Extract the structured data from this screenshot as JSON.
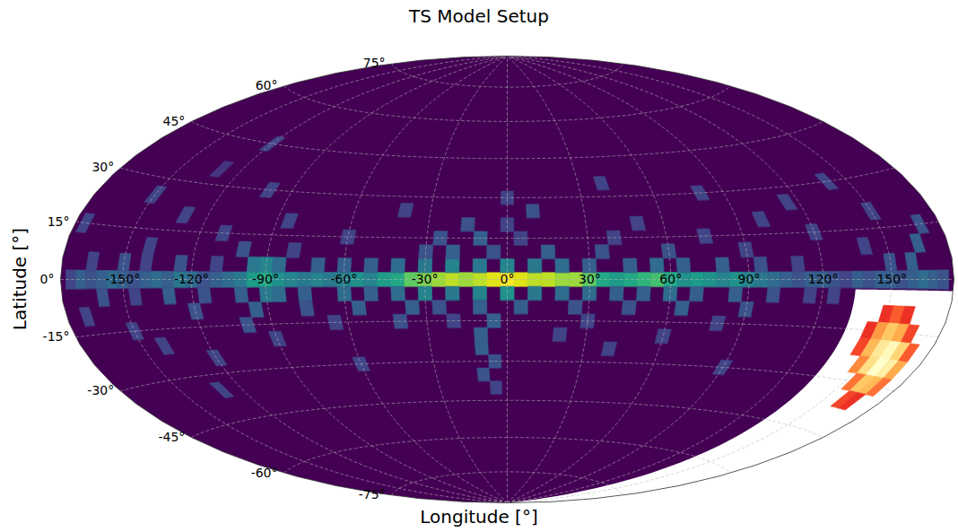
{
  "chart_data": {
    "type": "skymap",
    "title": "TS Model Setup",
    "x_label": "Longitude [°]",
    "y_label": "Latitude [°]",
    "xlim": [
      -180,
      180
    ],
    "ylim": [
      -90,
      90
    ],
    "xticks": [
      {
        "value": -150,
        "label": "-150°"
      },
      {
        "value": -120,
        "label": "-120°"
      },
      {
        "value": -90,
        "label": "-90°"
      },
      {
        "value": -60,
        "label": "-60°"
      },
      {
        "value": -30,
        "label": "-30°"
      },
      {
        "value": 0,
        "label": "0°"
      },
      {
        "value": 30,
        "label": "30°"
      },
      {
        "value": 60,
        "label": "60°"
      },
      {
        "value": 90,
        "label": "90°"
      },
      {
        "value": 120,
        "label": "120°"
      },
      {
        "value": 150,
        "label": "150°"
      }
    ],
    "yticks": [
      {
        "value": -75,
        "label": "-75°"
      },
      {
        "value": -60,
        "label": "-60°"
      },
      {
        "value": -45,
        "label": "-45°"
      },
      {
        "value": -30,
        "label": "-30°"
      },
      {
        "value": -15,
        "label": "-15°"
      },
      {
        "value": 0,
        "label": "0°"
      },
      {
        "value": 15,
        "label": "15°"
      },
      {
        "value": 30,
        "label": "30°"
      },
      {
        "value": 45,
        "label": "45°"
      },
      {
        "value": 60,
        "label": "60°"
      },
      {
        "value": 75,
        "label": "75°"
      }
    ],
    "grid": true,
    "heatmap": {
      "cell_size": 5,
      "zlim": [
        0,
        1
      ],
      "cells": [
        [
          -175,
          0,
          0.2
        ],
        [
          -170,
          0,
          0.3
        ],
        [
          -165,
          0,
          0.25
        ],
        [
          -160,
          0,
          0.3
        ],
        [
          -155,
          0,
          0.35
        ],
        [
          -150,
          0,
          0.3
        ],
        [
          -145,
          0,
          0.25
        ],
        [
          -140,
          0,
          0.3
        ],
        [
          -135,
          0,
          0.35
        ],
        [
          -130,
          0,
          0.3
        ],
        [
          -125,
          0,
          0.4
        ],
        [
          -120,
          0,
          0.35
        ],
        [
          -115,
          0,
          0.25
        ],
        [
          -110,
          0,
          0.3
        ],
        [
          -105,
          0,
          0.35
        ],
        [
          -100,
          0,
          0.4
        ],
        [
          -95,
          0,
          0.55
        ],
        [
          -90,
          0,
          0.6
        ],
        [
          -85,
          0,
          0.5
        ],
        [
          -80,
          0,
          0.45
        ],
        [
          -75,
          0,
          0.4
        ],
        [
          -70,
          0,
          0.45
        ],
        [
          -65,
          0,
          0.4
        ],
        [
          -60,
          0,
          0.45
        ],
        [
          -55,
          0,
          0.5
        ],
        [
          -50,
          0,
          0.45
        ],
        [
          -45,
          0,
          0.55
        ],
        [
          -40,
          0,
          0.6
        ],
        [
          -35,
          0,
          0.75
        ],
        [
          -30,
          0,
          0.8
        ],
        [
          -25,
          0,
          0.85
        ],
        [
          -20,
          0,
          0.9
        ],
        [
          -15,
          0,
          0.85
        ],
        [
          -10,
          0,
          0.9
        ],
        [
          -5,
          0,
          0.95
        ],
        [
          0,
          0,
          1.0
        ],
        [
          5,
          0,
          0.95
        ],
        [
          10,
          0,
          0.9
        ],
        [
          15,
          0,
          0.9
        ],
        [
          20,
          0,
          0.85
        ],
        [
          25,
          0,
          0.85
        ],
        [
          30,
          0,
          0.75
        ],
        [
          35,
          0,
          0.6
        ],
        [
          40,
          0,
          0.55
        ],
        [
          45,
          0,
          0.6
        ],
        [
          50,
          0,
          0.65
        ],
        [
          55,
          0,
          0.7
        ],
        [
          60,
          0,
          0.6
        ],
        [
          65,
          0,
          0.5
        ],
        [
          70,
          0,
          0.55
        ],
        [
          75,
          0,
          0.5
        ],
        [
          80,
          0,
          0.45
        ],
        [
          85,
          0,
          0.5
        ],
        [
          90,
          0,
          0.45
        ],
        [
          95,
          0,
          0.4
        ],
        [
          100,
          0,
          0.35
        ],
        [
          105,
          0,
          0.3
        ],
        [
          110,
          0,
          0.25
        ],
        [
          115,
          0,
          0.3
        ],
        [
          120,
          0,
          0.3
        ],
        [
          125,
          0,
          0.25
        ],
        [
          130,
          0,
          0.2
        ],
        [
          135,
          0,
          0.3
        ],
        [
          140,
          0,
          0.25
        ],
        [
          145,
          0,
          0.3
        ],
        [
          150,
          0,
          0.3
        ],
        [
          155,
          0,
          0.25
        ],
        [
          160,
          0,
          0.3
        ],
        [
          165,
          0,
          0.35
        ],
        [
          170,
          0,
          0.3
        ],
        [
          175,
          0,
          0.25
        ],
        [
          -165,
          5,
          0.2
        ],
        [
          -150,
          5,
          0.25
        ],
        [
          -140,
          5,
          0.2
        ],
        [
          -125,
          5,
          0.25
        ],
        [
          -110,
          5,
          0.2
        ],
        [
          -95,
          5,
          0.4
        ],
        [
          -90,
          5,
          0.45
        ],
        [
          -85,
          5,
          0.35
        ],
        [
          -70,
          5,
          0.3
        ],
        [
          -60,
          5,
          0.3
        ],
        [
          -50,
          5,
          0.3
        ],
        [
          -40,
          5,
          0.35
        ],
        [
          -30,
          5,
          0.4
        ],
        [
          -20,
          5,
          0.45
        ],
        [
          -10,
          5,
          0.4
        ],
        [
          0,
          5,
          0.45
        ],
        [
          10,
          5,
          0.4
        ],
        [
          20,
          5,
          0.35
        ],
        [
          30,
          5,
          0.3
        ],
        [
          45,
          5,
          0.3
        ],
        [
          55,
          5,
          0.35
        ],
        [
          65,
          5,
          0.3
        ],
        [
          80,
          5,
          0.3
        ],
        [
          95,
          5,
          0.25
        ],
        [
          110,
          5,
          0.2
        ],
        [
          150,
          5,
          0.25
        ],
        [
          160,
          5,
          0.3
        ],
        [
          -160,
          -5,
          0.25
        ],
        [
          -145,
          -5,
          0.2
        ],
        [
          -130,
          -5,
          0.3
        ],
        [
          -115,
          -5,
          0.25
        ],
        [
          -100,
          -5,
          0.3
        ],
        [
          -90,
          -5,
          0.4
        ],
        [
          -85,
          -5,
          0.35
        ],
        [
          -75,
          -5,
          0.3
        ],
        [
          -60,
          -5,
          0.35
        ],
        [
          -50,
          -5,
          0.3
        ],
        [
          -40,
          -5,
          0.35
        ],
        [
          -30,
          -5,
          0.45
        ],
        [
          -20,
          -5,
          0.4
        ],
        [
          -10,
          -5,
          0.45
        ],
        [
          0,
          -5,
          0.5
        ],
        [
          10,
          -5,
          0.4
        ],
        [
          20,
          -5,
          0.35
        ],
        [
          30,
          -5,
          0.35
        ],
        [
          40,
          -5,
          0.3
        ],
        [
          50,
          -5,
          0.3
        ],
        [
          60,
          -5,
          0.35
        ],
        [
          70,
          -5,
          0.3
        ],
        [
          85,
          -5,
          0.3
        ],
        [
          100,
          -5,
          0.25
        ],
        [
          115,
          -5,
          0.2
        ],
        [
          125,
          -5,
          0.2
        ],
        [
          -140,
          10,
          0.2
        ],
        [
          -100,
          10,
          0.25
        ],
        [
          -80,
          10,
          0.2
        ],
        [
          -30,
          10,
          0.25
        ],
        [
          -20,
          10,
          0.3
        ],
        [
          -5,
          10,
          0.25
        ],
        [
          15,
          10,
          0.3
        ],
        [
          35,
          10,
          0.25
        ],
        [
          60,
          10,
          0.25
        ],
        [
          90,
          10,
          0.2
        ],
        [
          140,
          10,
          0.2
        ],
        [
          165,
          10,
          0.3
        ],
        [
          -170,
          -10,
          0.2
        ],
        [
          -120,
          -10,
          0.25
        ],
        [
          -95,
          -10,
          0.3
        ],
        [
          -75,
          -10,
          0.25
        ],
        [
          -55,
          -10,
          0.3
        ],
        [
          -35,
          -10,
          0.3
        ],
        [
          -25,
          -10,
          0.25
        ],
        [
          -10,
          -10,
          0.3
        ],
        [
          5,
          -10,
          0.3
        ],
        [
          25,
          -10,
          0.25
        ],
        [
          45,
          -10,
          0.25
        ],
        [
          65,
          -10,
          0.3
        ],
        [
          90,
          -10,
          0.25
        ],
        [
          -175,
          15,
          0.2
        ],
        [
          -110,
          15,
          0.2
        ],
        [
          -60,
          15,
          0.2
        ],
        [
          -25,
          15,
          0.25
        ],
        [
          -10,
          15,
          0.3
        ],
        [
          5,
          15,
          0.2
        ],
        [
          40,
          15,
          0.2
        ],
        [
          75,
          15,
          0.2
        ],
        [
          120,
          15,
          0.2
        ],
        [
          170,
          15,
          0.25
        ],
        [
          -150,
          -15,
          0.2
        ],
        [
          -100,
          -15,
          0.25
        ],
        [
          -65,
          -15,
          0.2
        ],
        [
          -40,
          -15,
          0.25
        ],
        [
          -20,
          -15,
          0.2
        ],
        [
          -5,
          -15,
          0.3
        ],
        [
          30,
          -15,
          0.2
        ],
        [
          80,
          -15,
          0.2
        ],
        [
          -130,
          20,
          0.2
        ],
        [
          -85,
          20,
          0.2
        ],
        [
          -15,
          20,
          0.25
        ],
        [
          0,
          20,
          0.2
        ],
        [
          50,
          20,
          0.2
        ],
        [
          100,
          20,
          0.2
        ],
        [
          150,
          20,
          0.2
        ],
        [
          -140,
          -20,
          0.2
        ],
        [
          -90,
          -20,
          0.2
        ],
        [
          -10,
          -20,
          0.3
        ],
        [
          20,
          -20,
          0.2
        ],
        [
          60,
          -20,
          0.2
        ],
        [
          -150,
          25,
          0.2
        ],
        [
          -40,
          25,
          0.2
        ],
        [
          10,
          25,
          0.25
        ],
        [
          115,
          25,
          0.2
        ],
        [
          -120,
          -25,
          0.2
        ],
        [
          -10,
          -25,
          0.3
        ],
        [
          40,
          -25,
          0.2
        ],
        [
          -100,
          30,
          0.2
        ],
        [
          0,
          30,
          0.2
        ],
        [
          80,
          30,
          0.2
        ],
        [
          140,
          30,
          0.2
        ],
        [
          -60,
          -30,
          0.2
        ],
        [
          -5,
          -30,
          0.25
        ],
        [
          90,
          -30,
          0.2
        ],
        [
          -130,
          -35,
          0.2
        ],
        [
          -10,
          -35,
          0.25
        ],
        [
          -5,
          -40,
          0.2
        ],
        [
          -130,
          35,
          0.15
        ],
        [
          40,
          35,
          0.2
        ],
        [
          -120,
          45,
          0.2
        ]
      ]
    },
    "overlay": {
      "region": {
        "lon": [
          134,
          180
        ],
        "lat": [
          -90,
          -3
        ]
      },
      "color": "#ffffff",
      "cell_size": 5,
      "zlim": [
        0,
        1
      ],
      "cells": [
        [
          150,
          -10,
          0.3
        ],
        [
          155,
          -10,
          0.4
        ],
        [
          160,
          -10,
          0.3
        ],
        [
          145,
          -15,
          0.3
        ],
        [
          150,
          -15,
          0.55
        ],
        [
          155,
          -15,
          0.7
        ],
        [
          160,
          -15,
          0.6
        ],
        [
          165,
          -15,
          0.35
        ],
        [
          145,
          -20,
          0.35
        ],
        [
          150,
          -20,
          0.65
        ],
        [
          155,
          -20,
          0.85
        ],
        [
          160,
          -20,
          0.95
        ],
        [
          165,
          -20,
          0.75
        ],
        [
          170,
          -20,
          0.4
        ],
        [
          150,
          -25,
          0.5
        ],
        [
          155,
          -25,
          0.8
        ],
        [
          160,
          -25,
          1.0
        ],
        [
          165,
          -25,
          0.9
        ],
        [
          170,
          -25,
          0.6
        ],
        [
          155,
          -30,
          0.45
        ],
        [
          160,
          -30,
          0.7
        ],
        [
          165,
          -30,
          0.65
        ],
        [
          170,
          -30,
          0.45
        ],
        [
          160,
          -35,
          0.35
        ],
        [
          165,
          -35,
          0.3
        ]
      ]
    }
  }
}
